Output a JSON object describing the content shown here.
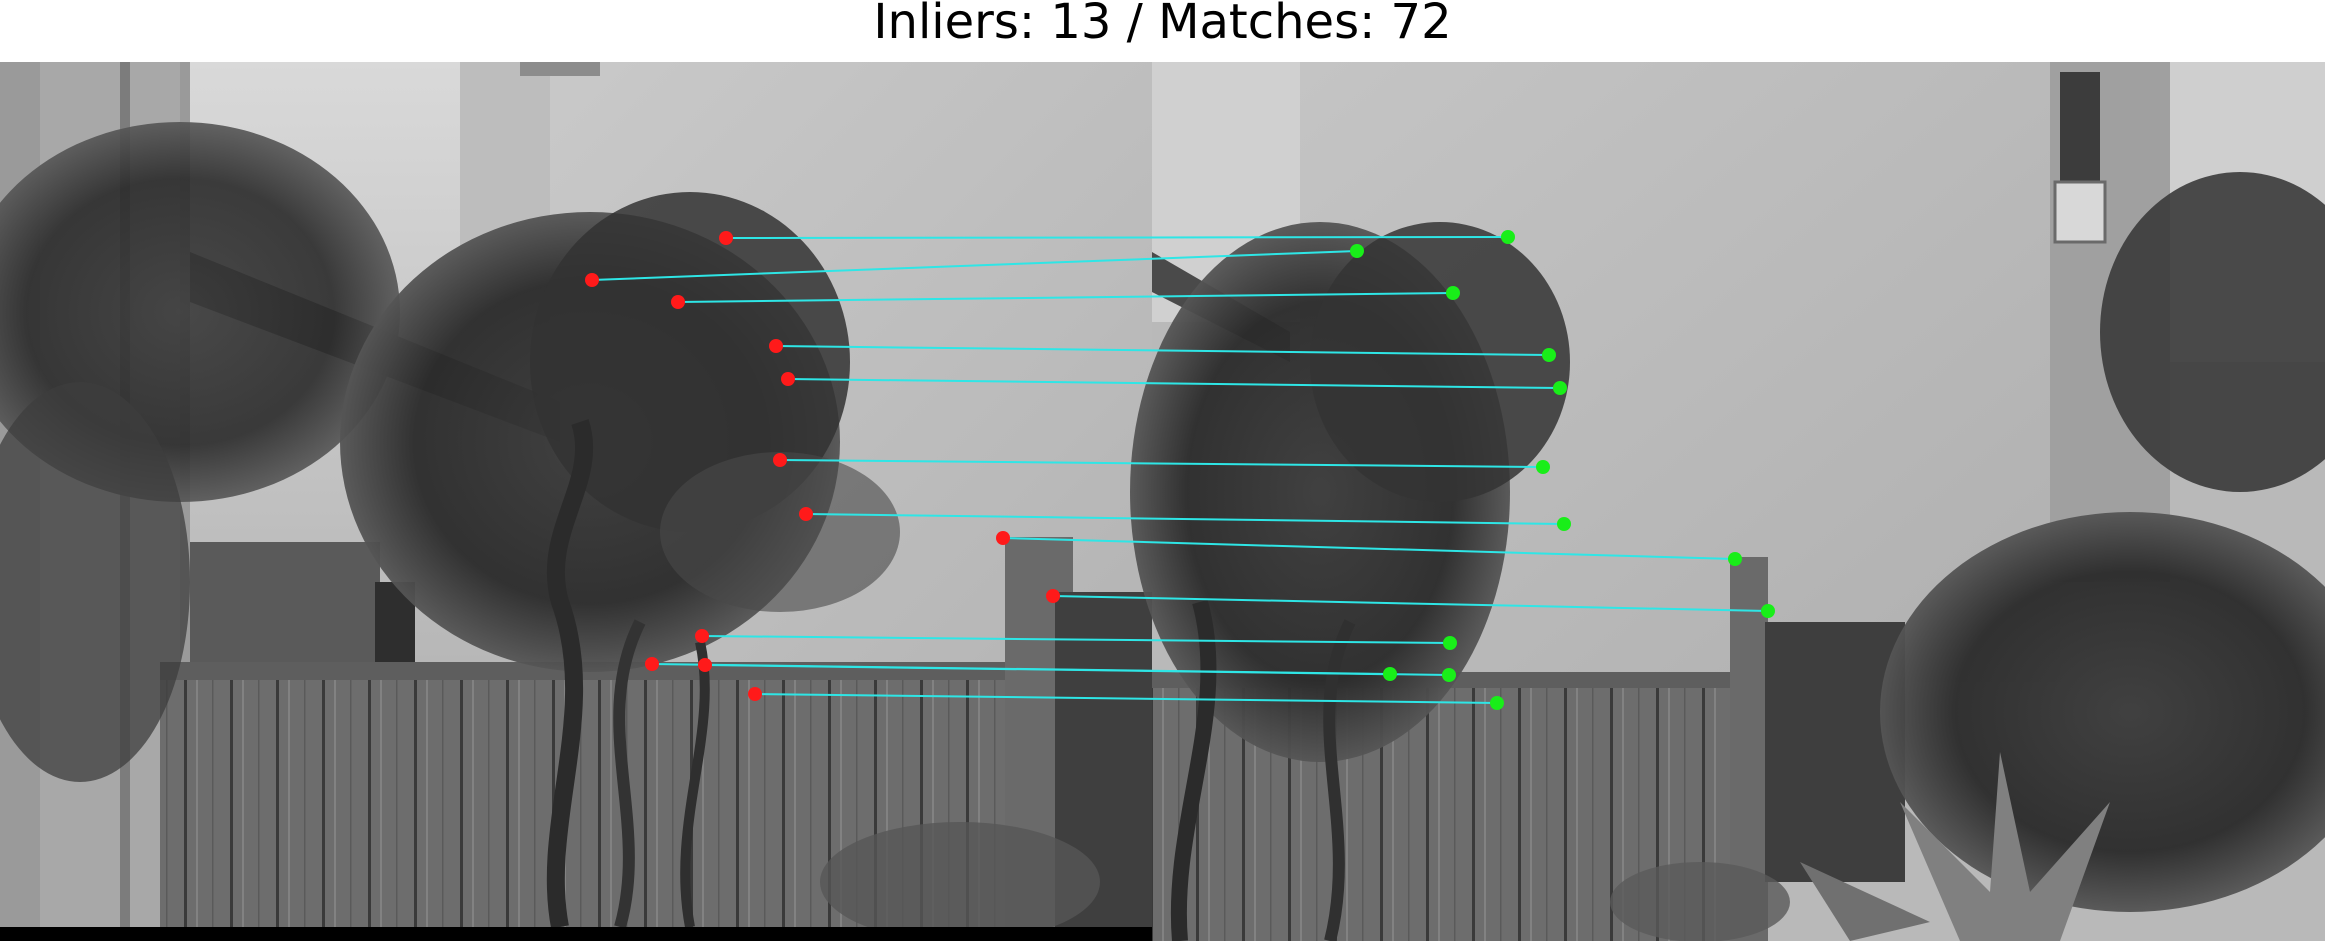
{
  "figure": {
    "title": "Inliers: 13 / Matches: 72",
    "left_image": "grayscale photo: stucco wall, pergola beam, climbing wisteria, wooden fence",
    "right_image": "grayscale photo: same scene from a shifted viewpoint, building windows, air conditioner, agave plant",
    "match_line_color": "#2ee6e6",
    "left_keypoint_color": "#ff1a1a",
    "right_keypoint_color": "#19ee19",
    "inlier_count": 13,
    "match_count": 72
  }
}
